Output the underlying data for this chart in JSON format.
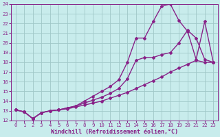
{
  "xlabel": "Windchill (Refroidissement éolien,°C)",
  "bg_color": "#c8ecec",
  "grid_color": "#a0c8c8",
  "line_color": "#882288",
  "xlim": [
    -0.5,
    23.5
  ],
  "ylim": [
    12,
    24
  ],
  "xticks": [
    0,
    1,
    2,
    3,
    4,
    5,
    6,
    7,
    8,
    9,
    10,
    11,
    12,
    13,
    14,
    15,
    16,
    17,
    18,
    19,
    20,
    21,
    22,
    23
  ],
  "yticks": [
    12,
    13,
    14,
    15,
    16,
    17,
    18,
    19,
    20,
    21,
    22,
    23,
    24
  ],
  "line1_x": [
    0,
    1,
    2,
    3,
    4,
    5,
    6,
    7,
    8,
    9,
    10,
    11,
    12,
    13,
    14,
    15,
    16,
    17,
    18,
    19,
    20,
    21,
    22,
    23
  ],
  "line1_y": [
    13.1,
    12.9,
    12.2,
    12.8,
    13.0,
    13.1,
    13.2,
    13.4,
    13.6,
    13.8,
    14.0,
    14.3,
    14.6,
    14.9,
    15.3,
    15.7,
    16.1,
    16.5,
    17.0,
    17.4,
    17.8,
    18.2,
    18.0,
    18.0
  ],
  "line2_x": [
    0,
    1,
    2,
    3,
    4,
    5,
    6,
    7,
    8,
    9,
    10,
    11,
    12,
    13,
    14,
    15,
    16,
    17,
    18,
    19,
    20,
    21,
    22,
    23
  ],
  "line2_y": [
    13.1,
    12.9,
    12.2,
    12.8,
    13.0,
    13.1,
    13.3,
    13.5,
    13.8,
    14.1,
    14.4,
    14.8,
    15.3,
    16.3,
    18.2,
    18.5,
    18.5,
    18.8,
    19.0,
    20.0,
    21.3,
    20.5,
    18.3,
    18.0
  ],
  "line3_x": [
    0,
    1,
    2,
    3,
    4,
    5,
    6,
    7,
    8,
    9,
    10,
    11,
    12,
    13,
    14,
    15,
    16,
    17,
    18,
    19,
    20,
    21,
    22,
    23
  ],
  "line3_y": [
    13.1,
    12.9,
    12.2,
    12.8,
    13.0,
    13.1,
    13.3,
    13.5,
    14.0,
    14.5,
    15.0,
    15.5,
    16.2,
    18.0,
    20.5,
    20.5,
    22.2,
    23.8,
    24.0,
    22.3,
    21.2,
    18.3,
    22.2,
    18.0
  ],
  "font_color": "#882288",
  "marker": "D",
  "markersize": 2.0,
  "linewidth": 1.0,
  "tick_fontsize": 5.2,
  "label_fontsize": 6.0
}
